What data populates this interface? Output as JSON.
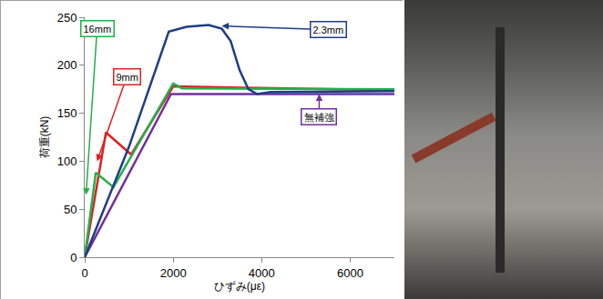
{
  "chart_data": {
    "type": "line",
    "x_label": "ひずみ(με)",
    "y_label": "荷重(kN)",
    "xlim": [
      0,
      7000
    ],
    "xticks": [
      0,
      2000,
      4000,
      6000
    ],
    "ylim": [
      0,
      250
    ],
    "yticks": [
      0,
      50,
      100,
      150,
      200,
      250
    ],
    "grid": false,
    "series": [
      {
        "name": "無補強",
        "color": "#7030a0",
        "x": [
          0,
          1950,
          7000
        ],
        "values": [
          0,
          170,
          170
        ]
      },
      {
        "name": "9mm",
        "color": "#e02020",
        "x": [
          0,
          480,
          1050,
          2000,
          7000
        ],
        "values": [
          0,
          130,
          107,
          178,
          174
        ]
      },
      {
        "name": "16mm",
        "color": "#22b04a",
        "x": [
          0,
          250,
          650,
          2000,
          2200,
          7000
        ],
        "values": [
          0,
          88,
          73,
          181,
          176,
          175
        ]
      },
      {
        "name": "2.3mm",
        "color": "#1f3c88",
        "x": [
          0,
          1000,
          1900,
          2300,
          2800,
          3100,
          3300,
          3500,
          3700,
          3900,
          4200,
          7000
        ],
        "values": [
          0,
          115,
          235,
          240,
          242,
          238,
          225,
          195,
          175,
          170,
          172,
          173
        ]
      }
    ],
    "annotations": [
      {
        "text": "16mm",
        "color": "#22b04a",
        "x": 30,
        "y": 65,
        "ax": 280,
        "ay": 238
      },
      {
        "text": "9mm",
        "color": "#e02020",
        "x": 280,
        "y": 100,
        "ax": 950,
        "ay": 188
      },
      {
        "text": "2.3mm",
        "color": "#1f3c88",
        "x": 3100,
        "y": 241,
        "ax": 5500,
        "ay": 237
      },
      {
        "text": "無補強",
        "color": "#7030a0",
        "x": 5300,
        "y": 170,
        "ax": 5300,
        "ay": 146
      }
    ]
  }
}
